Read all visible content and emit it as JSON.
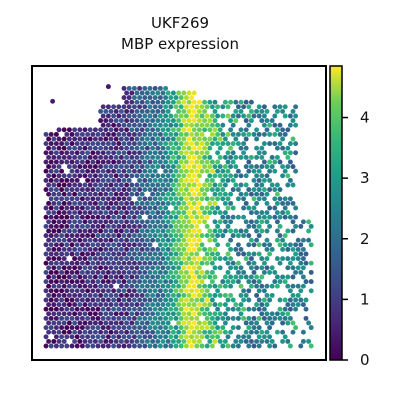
{
  "chart_data": {
    "type": "scatter",
    "title_lines": [
      "UKF269",
      "MBP expression"
    ],
    "xlabel": "",
    "ylabel": "",
    "colorbar": {
      "colormap": "viridis",
      "range": [
        0,
        4.85
      ],
      "ticks": [
        0,
        1,
        2,
        3,
        4
      ],
      "tick_labels": [
        "0",
        "1",
        "2",
        "3",
        "4"
      ]
    },
    "grid": false,
    "axes_ticks": false,
    "profile_columns": {
      "x_fraction": [
        0.0,
        0.3,
        0.45,
        0.5,
        0.52,
        0.55,
        0.57,
        0.6,
        0.65,
        0.75,
        1.0
      ],
      "expression": [
        0.4,
        0.8,
        2.2,
        3.3,
        4.1,
        4.6,
        4.4,
        3.6,
        2.6,
        2.0,
        2.0
      ]
    },
    "stray_points": [
      {
        "x_fraction": 0.07,
        "y_fraction": 0.88,
        "expression": 0.4
      },
      {
        "x_fraction": 0.26,
        "y_fraction": 0.93,
        "expression": 0.3
      }
    ]
  }
}
